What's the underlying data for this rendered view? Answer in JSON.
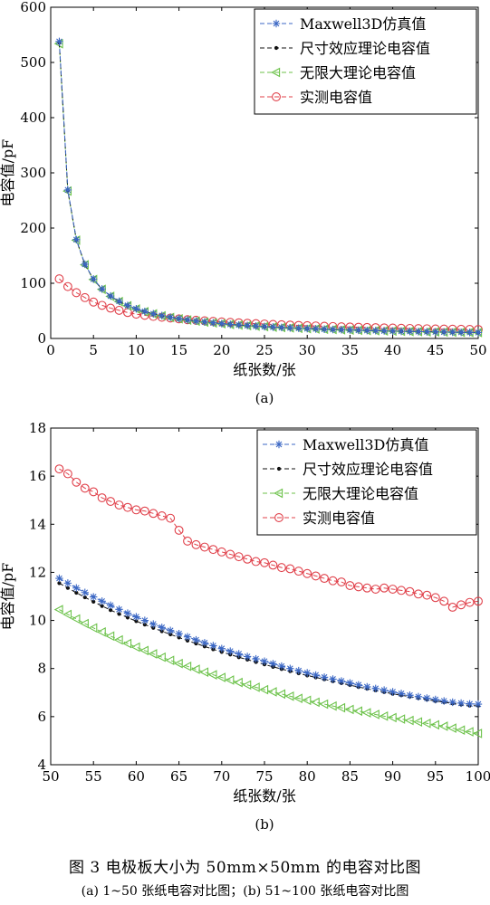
{
  "figure": {
    "caption": "图 3   电极板大小为 50mm×50mm 的电容对比图",
    "subcaption": "(a) 1~50 张纸电容对比图；(b) 51~100 张纸电容对比图"
  },
  "colors": {
    "maxwell": "#3b67c4",
    "size_effect": "#111111",
    "infinite": "#6cc24a",
    "measured": "#e0404a"
  },
  "chart_data": [
    {
      "type": "line",
      "panel_label": "(a)",
      "xlabel": "纸张数/张",
      "ylabel": "电容值/pF",
      "xlim": [
        0,
        50
      ],
      "ylim": [
        0,
        600
      ],
      "xticks": [
        0,
        5,
        10,
        15,
        20,
        25,
        30,
        35,
        40,
        45,
        50
      ],
      "yticks": [
        0,
        100,
        200,
        300,
        400,
        500,
        600
      ],
      "legend_position": "top-right",
      "grid": false,
      "x": [
        1,
        2,
        3,
        4,
        5,
        6,
        7,
        8,
        9,
        10,
        11,
        12,
        13,
        14,
        15,
        16,
        17,
        18,
        19,
        20,
        21,
        22,
        23,
        24,
        25,
        26,
        27,
        28,
        29,
        30,
        31,
        32,
        33,
        34,
        35,
        36,
        37,
        38,
        39,
        40,
        41,
        42,
        43,
        44,
        45,
        46,
        47,
        48,
        49,
        50
      ],
      "series": [
        {
          "name": "Maxwell3D仿真值",
          "key": "maxwell",
          "marker": "asterisk",
          "values": [
            538,
            269,
            179,
            134.5,
            107.6,
            89.7,
            76.9,
            67.3,
            59.8,
            53.8,
            48.9,
            44.8,
            41.4,
            38.4,
            35.9,
            33.6,
            31.6,
            29.9,
            28.3,
            26.9,
            25.6,
            24.5,
            23.4,
            22.4,
            21.5,
            20.7,
            19.9,
            19.2,
            18.6,
            17.9,
            17.4,
            16.8,
            16.3,
            15.8,
            15.4,
            14.9,
            14.5,
            14.2,
            13.8,
            13.5,
            13.1,
            12.8,
            12.5,
            12.2,
            12.0,
            11.7,
            11.4,
            11.2,
            11.0,
            10.8
          ]
        },
        {
          "name": "尺寸效应理论电容值",
          "key": "size_effect",
          "marker": "dot",
          "values": [
            536,
            268,
            178.7,
            134,
            107.2,
            89.3,
            76.6,
            67,
            59.6,
            53.6,
            48.7,
            44.7,
            41.2,
            38.3,
            35.7,
            33.5,
            31.5,
            29.8,
            28.2,
            26.8,
            25.5,
            24.4,
            23.3,
            22.3,
            21.4,
            20.6,
            19.9,
            19.1,
            18.5,
            17.9,
            17.3,
            16.8,
            16.2,
            15.8,
            15.3,
            14.9,
            14.5,
            14.1,
            13.7,
            13.4,
            13.1,
            12.8,
            12.5,
            12.2,
            11.9,
            11.7,
            11.4,
            11.2,
            10.9,
            10.7
          ]
        },
        {
          "name": "无限大理论电容值",
          "key": "infinite",
          "marker": "triangle-left",
          "values": [
            534,
            267,
            178,
            133.5,
            106.8,
            89,
            76.3,
            66.8,
            59.3,
            53.4,
            48.5,
            44.5,
            41.1,
            38.1,
            35.6,
            33.4,
            31.4,
            29.7,
            28.1,
            26.7,
            25.4,
            24.3,
            23.2,
            22.3,
            21.4,
            20.5,
            19.8,
            19.1,
            18.4,
            17.8,
            17.2,
            16.7,
            16.2,
            15.7,
            15.3,
            14.8,
            14.4,
            14.1,
            13.7,
            13.4,
            13.0,
            12.7,
            12.4,
            12.1,
            11.9,
            11.6,
            11.4,
            11.1,
            10.9,
            10.7
          ]
        },
        {
          "name": "实测电容值",
          "key": "measured",
          "marker": "circle",
          "values": [
            108,
            94,
            83,
            74,
            66,
            60,
            55,
            51,
            47,
            44,
            42,
            40,
            38.5,
            37,
            35.5,
            34,
            33,
            32,
            31,
            30,
            29.2,
            28.4,
            27.6,
            26.9,
            26.2,
            25.5,
            24.9,
            24.3,
            23.7,
            23.2,
            22.7,
            22.2,
            21.7,
            21.2,
            20.8,
            20.4,
            20.0,
            19.6,
            19.2,
            18.9,
            18.5,
            18.2,
            17.9,
            17.6,
            17.3,
            17.0,
            16.8,
            16.6,
            16.4,
            16.3
          ]
        }
      ]
    },
    {
      "type": "line",
      "panel_label": "(b)",
      "xlabel": "纸张数/张",
      "ylabel": "电容值/pF",
      "xlim": [
        50,
        100
      ],
      "ylim": [
        4,
        18
      ],
      "xticks": [
        50,
        55,
        60,
        65,
        70,
        75,
        80,
        85,
        90,
        95,
        100
      ],
      "yticks": [
        4,
        6,
        8,
        10,
        12,
        14,
        16,
        18
      ],
      "legend_position": "top-right",
      "grid": false,
      "x": [
        51,
        52,
        53,
        54,
        55,
        56,
        57,
        58,
        59,
        60,
        61,
        62,
        63,
        64,
        65,
        66,
        67,
        68,
        69,
        70,
        71,
        72,
        73,
        74,
        75,
        76,
        77,
        78,
        79,
        80,
        81,
        82,
        83,
        84,
        85,
        86,
        87,
        88,
        89,
        90,
        91,
        92,
        93,
        94,
        95,
        96,
        97,
        98,
        99,
        100
      ],
      "series": [
        {
          "name": "Maxwell3D仿真值",
          "key": "maxwell",
          "marker": "asterisk",
          "values": [
            11.75,
            11.55,
            11.35,
            11.16,
            10.98,
            10.8,
            10.63,
            10.46,
            10.3,
            10.15,
            10.0,
            9.85,
            9.71,
            9.58,
            9.45,
            9.32,
            9.19,
            9.07,
            8.95,
            8.83,
            8.72,
            8.61,
            8.5,
            8.4,
            8.3,
            8.2,
            8.1,
            8.0,
            7.91,
            7.82,
            7.73,
            7.64,
            7.56,
            7.48,
            7.4,
            7.32,
            7.24,
            7.17,
            7.1,
            7.03,
            6.96,
            6.89,
            6.83,
            6.77,
            6.71,
            6.65,
            6.6,
            6.56,
            6.53,
            6.52
          ]
        },
        {
          "name": "尺寸效应理论电容值",
          "key": "size_effect",
          "marker": "dot",
          "values": [
            11.55,
            11.35,
            11.15,
            10.96,
            10.78,
            10.6,
            10.43,
            10.27,
            10.12,
            9.97,
            9.83,
            9.69,
            9.55,
            9.42,
            9.29,
            9.16,
            9.04,
            8.92,
            8.8,
            8.69,
            8.58,
            8.47,
            8.37,
            8.27,
            8.17,
            8.07,
            7.98,
            7.89,
            7.8,
            7.71,
            7.63,
            7.55,
            7.47,
            7.39,
            7.31,
            7.23,
            7.16,
            7.09,
            7.02,
            6.95,
            6.89,
            6.83,
            6.77,
            6.71,
            6.65,
            6.6,
            6.55,
            6.5,
            6.46,
            6.45
          ]
        },
        {
          "name": "无限大理论电容值",
          "key": "infinite",
          "marker": "triangle-left",
          "values": [
            10.45,
            10.25,
            10.06,
            9.87,
            9.69,
            9.52,
            9.35,
            9.19,
            9.04,
            8.89,
            8.75,
            8.61,
            8.47,
            8.34,
            8.21,
            8.09,
            7.97,
            7.85,
            7.74,
            7.63,
            7.52,
            7.42,
            7.32,
            7.22,
            7.12,
            7.03,
            6.94,
            6.85,
            6.76,
            6.68,
            6.6,
            6.52,
            6.44,
            6.37,
            6.3,
            6.23,
            6.16,
            6.09,
            6.02,
            5.96,
            5.9,
            5.84,
            5.78,
            5.72,
            5.66,
            5.6,
            5.52,
            5.44,
            5.37,
            5.3
          ]
        },
        {
          "name": "实测电容值",
          "key": "measured",
          "marker": "circle",
          "values": [
            16.3,
            16.1,
            15.75,
            15.5,
            15.35,
            15.1,
            14.95,
            14.8,
            14.7,
            14.6,
            14.55,
            14.45,
            14.35,
            14.25,
            13.75,
            13.3,
            13.15,
            13.05,
            12.95,
            12.85,
            12.75,
            12.65,
            12.55,
            12.45,
            12.4,
            12.3,
            12.2,
            12.15,
            12.05,
            11.95,
            11.85,
            11.75,
            11.65,
            11.6,
            11.45,
            11.4,
            11.35,
            11.3,
            11.35,
            11.3,
            11.25,
            11.2,
            11.1,
            11.05,
            10.95,
            10.8,
            10.55,
            10.65,
            10.75,
            10.8
          ]
        }
      ]
    }
  ]
}
